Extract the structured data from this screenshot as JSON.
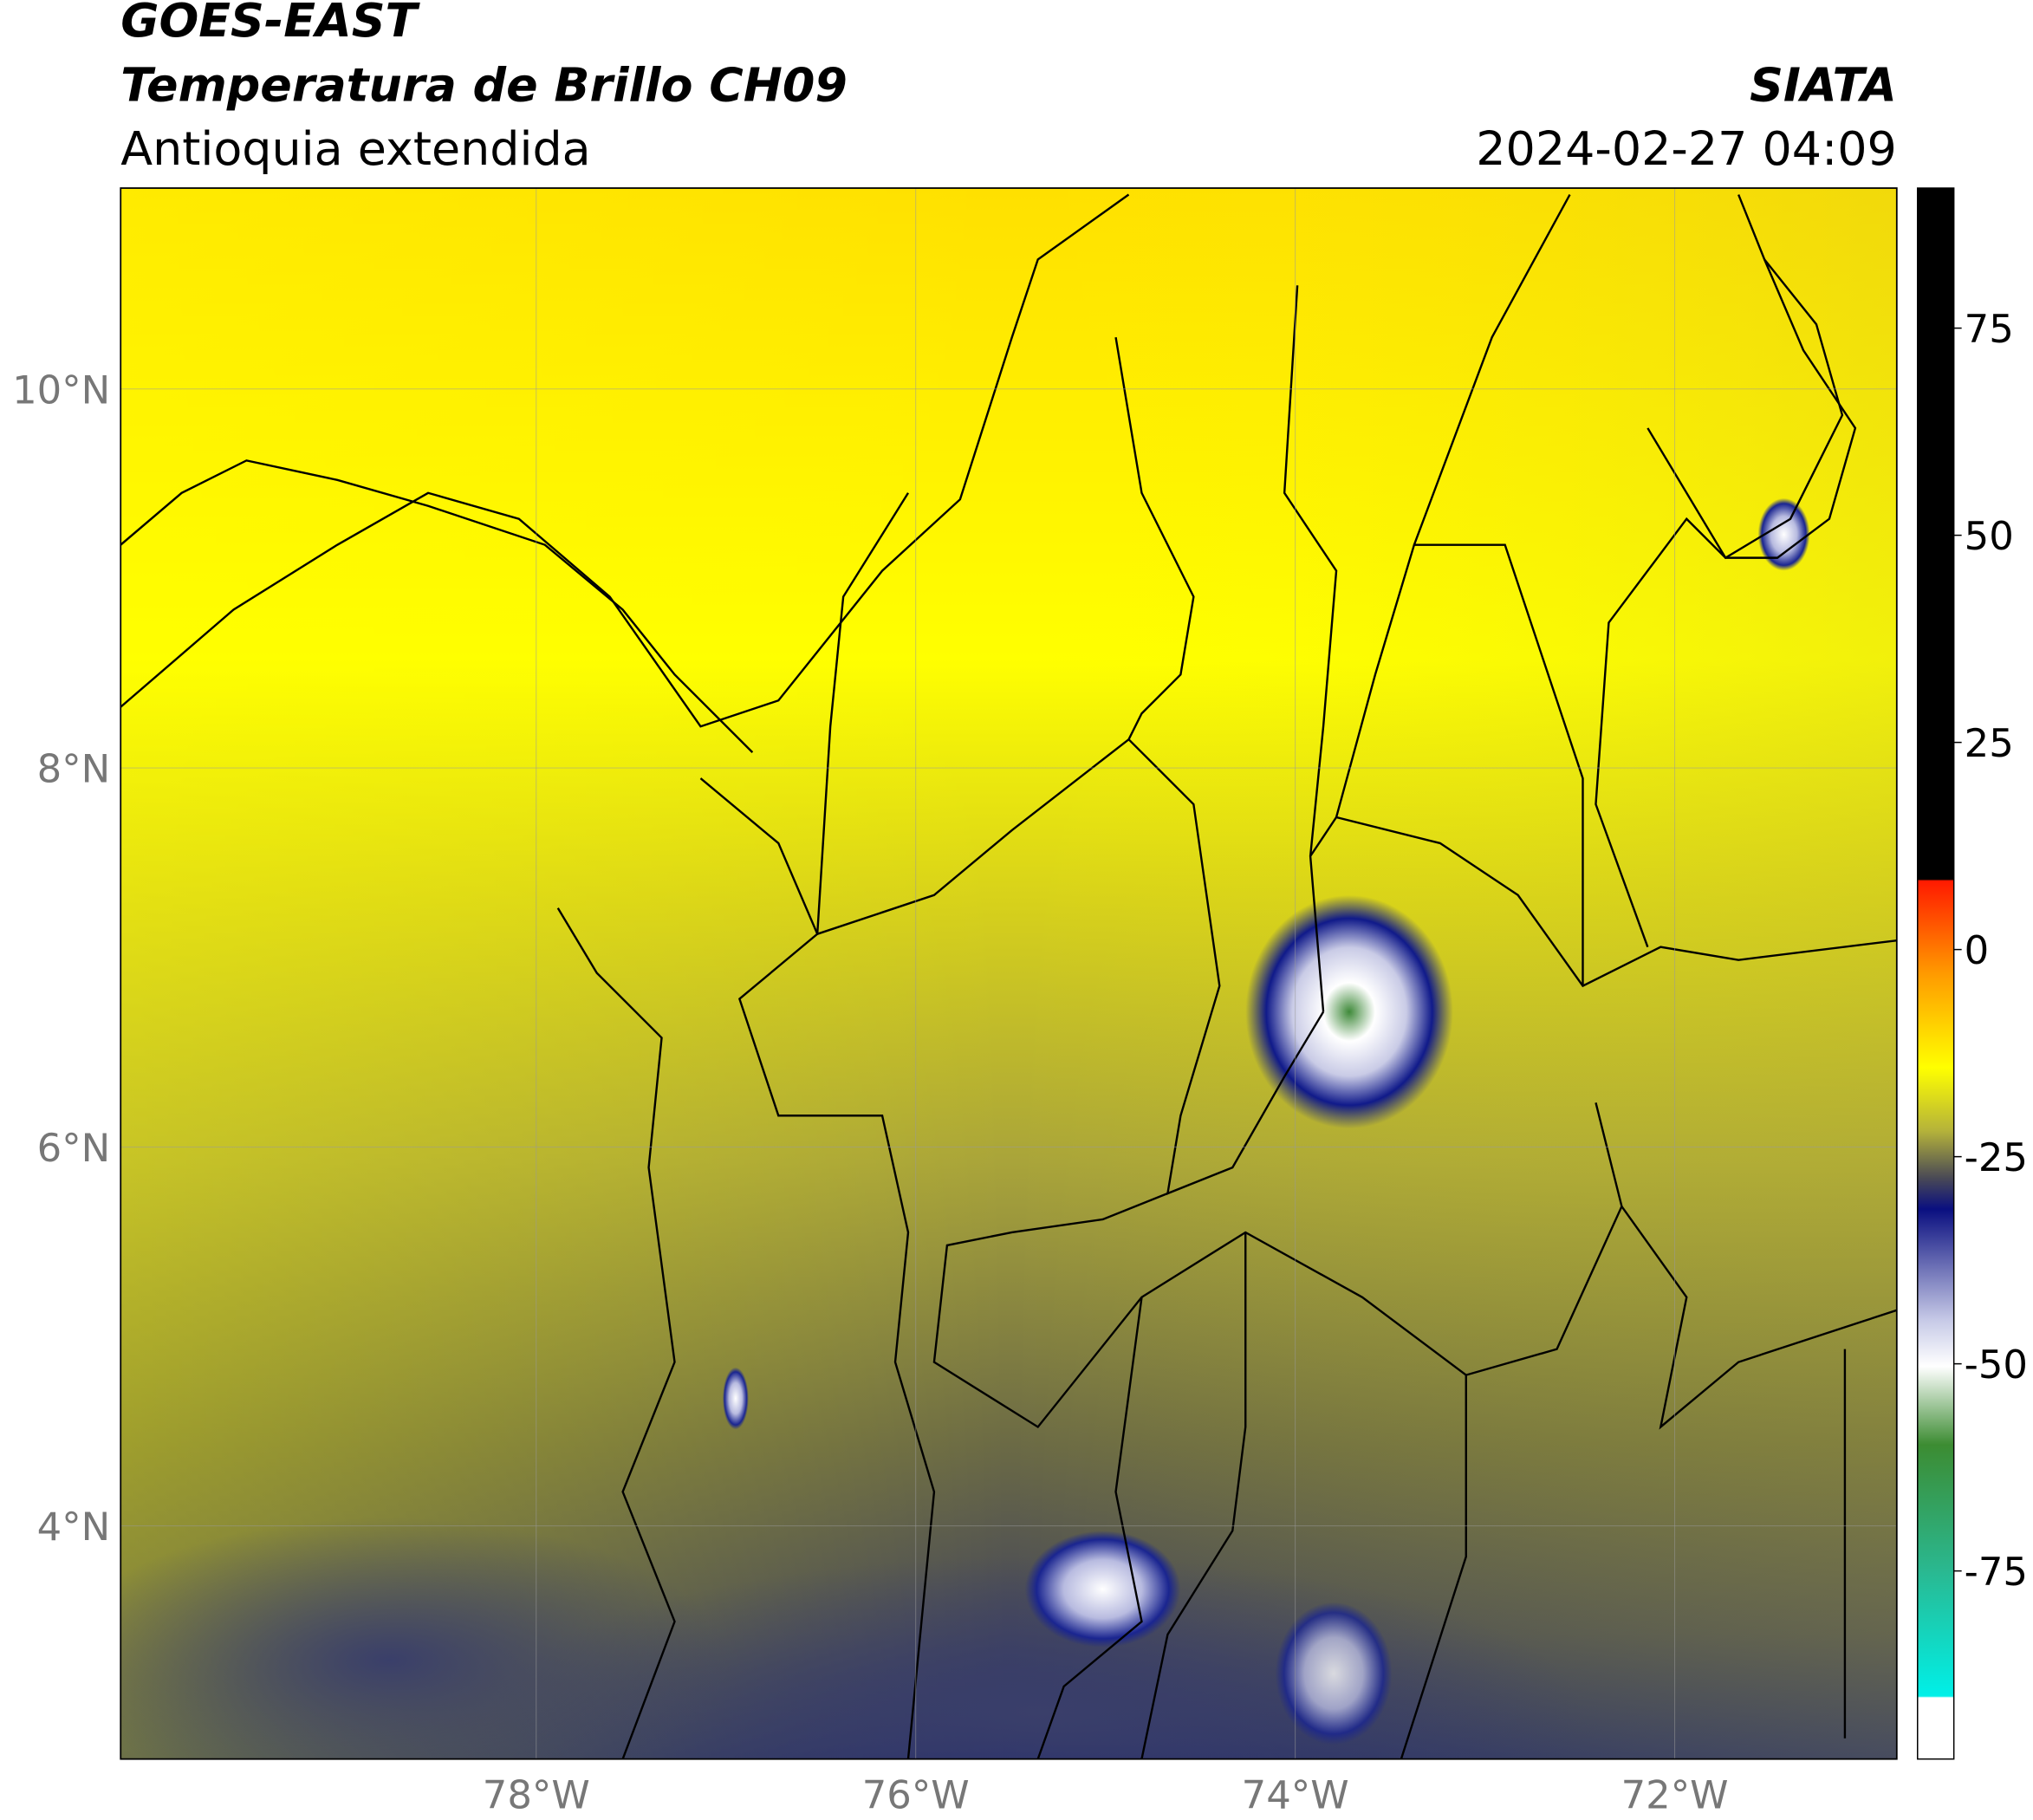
{
  "map": {
    "header": {
      "satellite": "GOES-EAST",
      "product": "Temperatura de Brillo CH09",
      "region": "Antioquia extendida",
      "source": "SIATA",
      "datetime": "2024-02-27 04:09"
    },
    "lonlim": [
      -80.19,
      -70.83
    ],
    "latlim": [
      2.77,
      11.06
    ],
    "lon_ticks": [
      {
        "value": -78,
        "label": "78°W"
      },
      {
        "value": -76,
        "label": "76°W"
      },
      {
        "value": -74,
        "label": "74°W"
      },
      {
        "value": -72,
        "label": "72°W"
      }
    ],
    "lat_ticks": [
      {
        "value": 10,
        "label": "10°N"
      },
      {
        "value": 8,
        "label": "8°N"
      },
      {
        "value": 6,
        "label": "6°N"
      },
      {
        "value": 4,
        "label": "4°N"
      }
    ],
    "colorbar": {
      "lim": [
        -97.7,
        91.9
      ],
      "ticks": [
        75,
        50,
        25,
        0,
        -25,
        -50,
        -75
      ]
    }
  }
}
